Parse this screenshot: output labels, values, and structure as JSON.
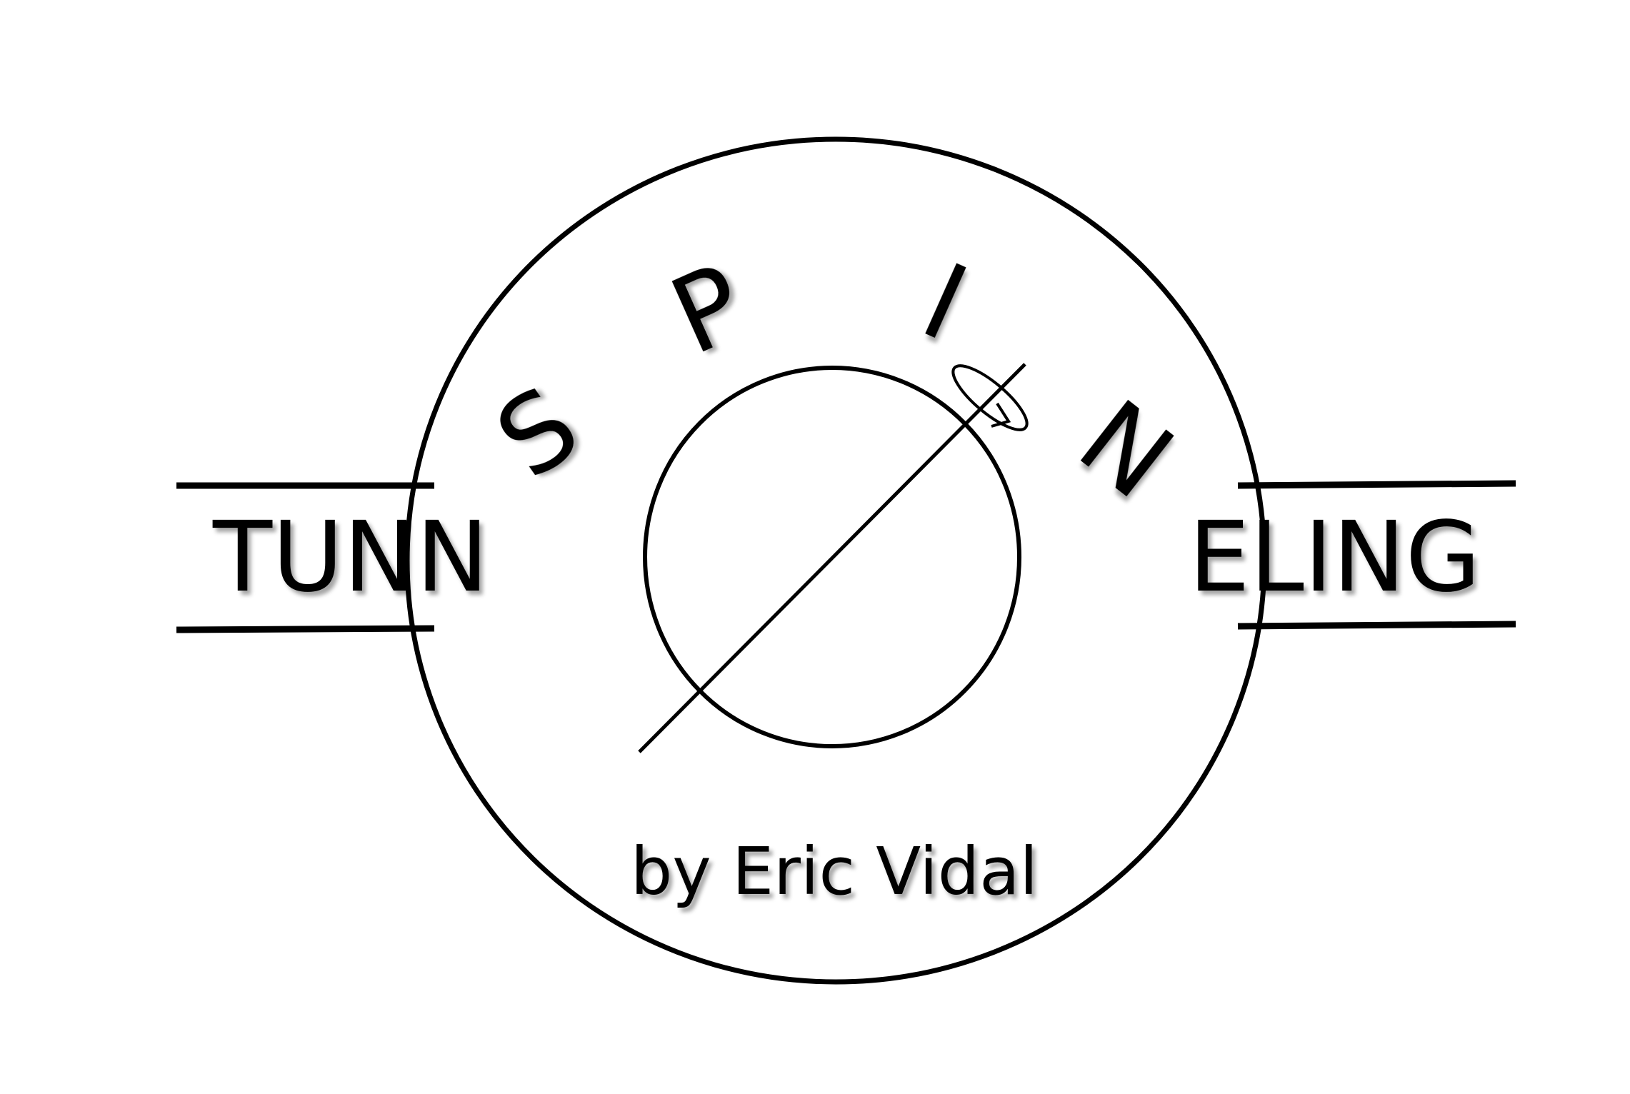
{
  "logo": {
    "left_word": "TUNN",
    "right_word": "ELING",
    "arc_letters": [
      "S",
      "P",
      "I",
      "N"
    ],
    "byline": "by Eric Vidal"
  },
  "colors": {
    "ink": "#000000",
    "background": "#ffffff"
  }
}
